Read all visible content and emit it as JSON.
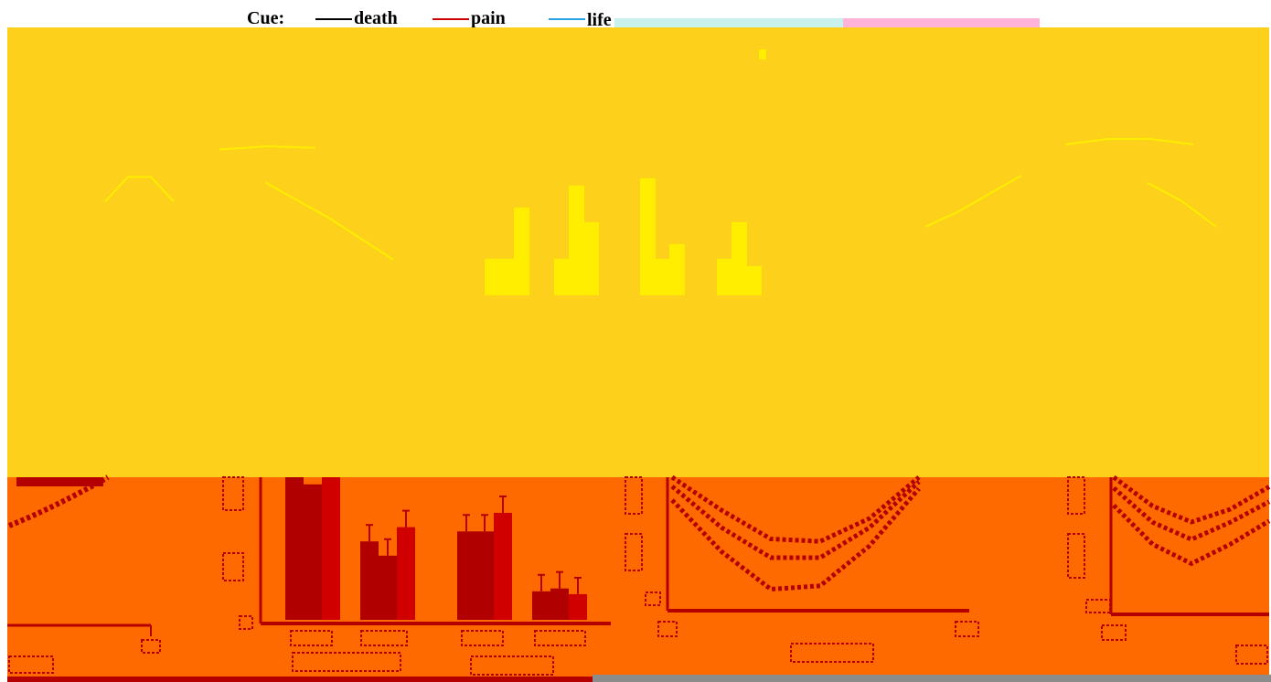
{
  "legend": {
    "title": "Cue:",
    "items": [
      {
        "label": "death",
        "color": "#000000"
      },
      {
        "label": "pain",
        "color": "#cc0000"
      },
      {
        "label": "life",
        "color": "#29a3e0"
      }
    ]
  },
  "colors": {
    "upper_panel_bg": "#fdd01b",
    "lower_panel_bg": "#ff6a00",
    "upper_marks": "#ffee00",
    "lower_marks": "#b40000",
    "bar_dark": "#b00000",
    "bar_light": "#d00000",
    "top_strip_cyan": "#c9f2ee",
    "top_strip_pink": "#ffb3d9",
    "bottom_strip_grey": "#8c8c8c"
  },
  "chart_data": [
    {
      "panel": "upper-left",
      "type": "line",
      "title": "",
      "xlabel": "",
      "ylabel": "",
      "series": [
        {
          "values": [
            0.55,
            0.85,
            0.85,
            0.55
          ]
        },
        {
          "values": [
            0.9,
            1.0,
            0.95
          ]
        },
        {
          "values": [
            0.85,
            0.55,
            0.2
          ]
        }
      ]
    },
    {
      "panel": "upper-middle",
      "type": "bar",
      "title": "",
      "xlabel": "",
      "ylabel": "",
      "series": [
        {
          "values": [
            0.25,
            0.25,
            0.8,
            0.25
          ]
        },
        {
          "values": [
            0.25,
            0.75,
            0.25,
            0.5
          ]
        },
        {
          "values": [
            0.6,
            0.5,
            0.35,
            0.2
          ]
        }
      ]
    },
    {
      "panel": "upper-right",
      "type": "line",
      "title": "",
      "xlabel": "",
      "ylabel": "",
      "series": [
        {
          "values": [
            0.15,
            0.35,
            0.6,
            0.85
          ]
        },
        {
          "values": [
            0.8,
            0.95,
            0.95,
            0.8
          ]
        },
        {
          "values": [
            0.75,
            0.5,
            0.15
          ]
        }
      ]
    },
    {
      "panel": "lower-middle",
      "type": "bar",
      "title": "",
      "xlabel": "",
      "ylabel": "",
      "series": [
        {
          "values": [
            1.0,
            0.55,
            0.62,
            0.2
          ]
        },
        {
          "values": [
            0.95,
            0.45,
            0.62,
            0.22
          ]
        },
        {
          "values": [
            1.0,
            0.65,
            0.75,
            0.18
          ]
        }
      ]
    },
    {
      "panel": "lower-right-a",
      "type": "line",
      "title": "",
      "xlabel": "",
      "ylabel": "",
      "series": [
        {
          "values": [
            1.0,
            0.6,
            0.25,
            0.22,
            0.5,
            1.0
          ]
        },
        {
          "values": [
            0.9,
            0.45,
            0.12,
            0.12,
            0.45,
            0.95
          ]
        },
        {
          "values": [
            0.8,
            0.35,
            0.02,
            0.05,
            0.4,
            0.9
          ]
        }
      ]
    },
    {
      "panel": "lower-right-b",
      "type": "line",
      "title": "",
      "xlabel": "",
      "ylabel": "",
      "series": [
        {
          "values": [
            1.0,
            0.55,
            0.3,
            0.5,
            0.85
          ]
        },
        {
          "values": [
            0.95,
            0.45,
            0.2,
            0.45,
            0.75
          ]
        },
        {
          "values": [
            0.85,
            0.35,
            0.1,
            0.35,
            0.65
          ]
        }
      ]
    }
  ]
}
